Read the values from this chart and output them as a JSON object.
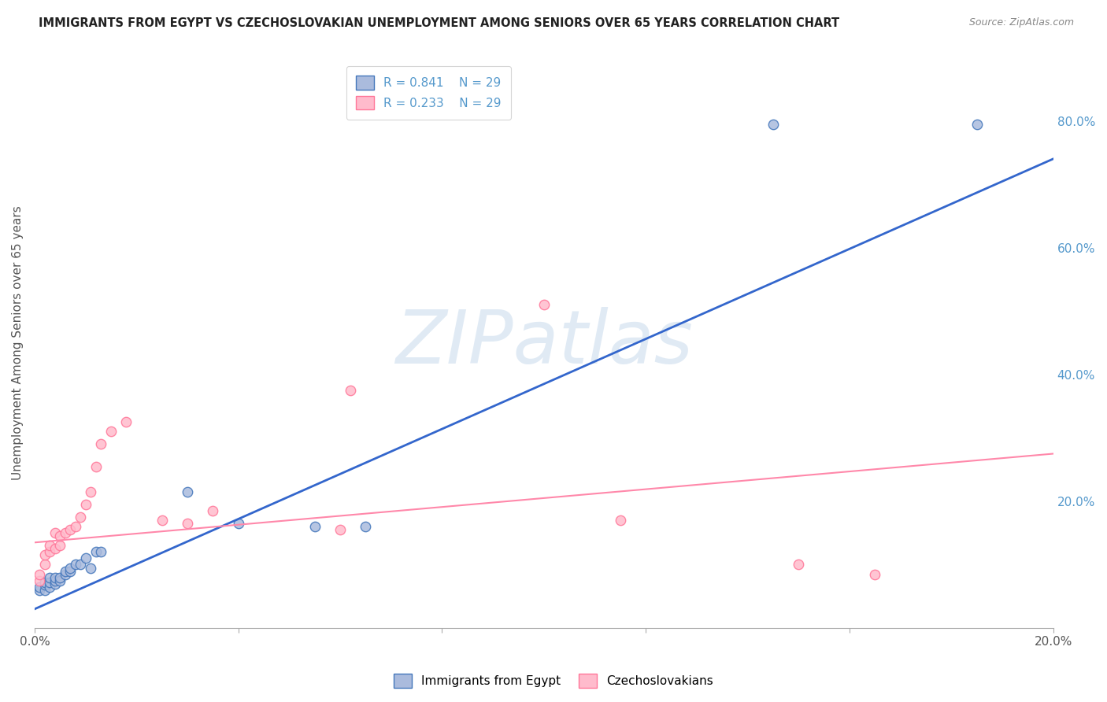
{
  "title": "IMMIGRANTS FROM EGYPT VS CZECHOSLOVAKIAN UNEMPLOYMENT AMONG SENIORS OVER 65 YEARS CORRELATION CHART",
  "source": "Source: ZipAtlas.com",
  "ylabel": "Unemployment Among Seniors over 65 years",
  "xlim": [
    0.0,
    0.2
  ],
  "ylim": [
    0.0,
    0.9
  ],
  "x_tick_positions": [
    0.0,
    0.04,
    0.08,
    0.12,
    0.16,
    0.2
  ],
  "x_tick_labels": [
    "0.0%",
    "",
    "",
    "",
    "",
    "20.0%"
  ],
  "y_tick_positions": [
    0.0,
    0.2,
    0.4,
    0.6,
    0.8
  ],
  "y_tick_labels": [
    "",
    "20.0%",
    "40.0%",
    "60.0%",
    "80.0%"
  ],
  "legend_blue_r": "R = 0.841",
  "legend_blue_n": "N = 29",
  "legend_pink_r": "R = 0.233",
  "legend_pink_n": "N = 29",
  "legend_label_blue": "Immigrants from Egypt",
  "legend_label_pink": "Czechoslovakians",
  "blue_fill": "#AABBDD",
  "blue_edge": "#4477BB",
  "pink_fill": "#FFBBCC",
  "pink_edge": "#FF7799",
  "blue_line_color": "#3366CC",
  "pink_line_color": "#FF88AA",
  "watermark_text": "ZIPatlas",
  "watermark_color": "#CCDDEE",
  "watermark_alpha": 0.6,
  "background_color": "#FFFFFF",
  "grid_color": "#CCCCCC",
  "blue_scatter_x": [
    0.001,
    0.001,
    0.002,
    0.002,
    0.002,
    0.003,
    0.003,
    0.003,
    0.004,
    0.004,
    0.004,
    0.005,
    0.005,
    0.006,
    0.006,
    0.007,
    0.007,
    0.008,
    0.009,
    0.01,
    0.011,
    0.012,
    0.013,
    0.03,
    0.04,
    0.055,
    0.065,
    0.145,
    0.185
  ],
  "blue_scatter_y": [
    0.06,
    0.065,
    0.06,
    0.068,
    0.072,
    0.065,
    0.072,
    0.08,
    0.07,
    0.075,
    0.08,
    0.075,
    0.08,
    0.085,
    0.09,
    0.09,
    0.095,
    0.1,
    0.1,
    0.11,
    0.095,
    0.12,
    0.12,
    0.215,
    0.165,
    0.16,
    0.16,
    0.795,
    0.795
  ],
  "pink_scatter_x": [
    0.001,
    0.001,
    0.002,
    0.002,
    0.003,
    0.003,
    0.004,
    0.004,
    0.005,
    0.005,
    0.006,
    0.007,
    0.008,
    0.009,
    0.01,
    0.011,
    0.012,
    0.013,
    0.015,
    0.018,
    0.025,
    0.03,
    0.035,
    0.06,
    0.062,
    0.1,
    0.115,
    0.15,
    0.165
  ],
  "pink_scatter_y": [
    0.075,
    0.085,
    0.1,
    0.115,
    0.12,
    0.13,
    0.125,
    0.15,
    0.13,
    0.145,
    0.15,
    0.155,
    0.16,
    0.175,
    0.195,
    0.215,
    0.255,
    0.29,
    0.31,
    0.325,
    0.17,
    0.165,
    0.185,
    0.155,
    0.375,
    0.51,
    0.17,
    0.1,
    0.085
  ],
  "blue_line_x": [
    0.0,
    0.2
  ],
  "blue_line_y": [
    0.03,
    0.74
  ],
  "pink_line_x": [
    0.0,
    0.2
  ],
  "pink_line_y": [
    0.135,
    0.275
  ],
  "marker_size": 80,
  "marker_linewidth": 1.0
}
